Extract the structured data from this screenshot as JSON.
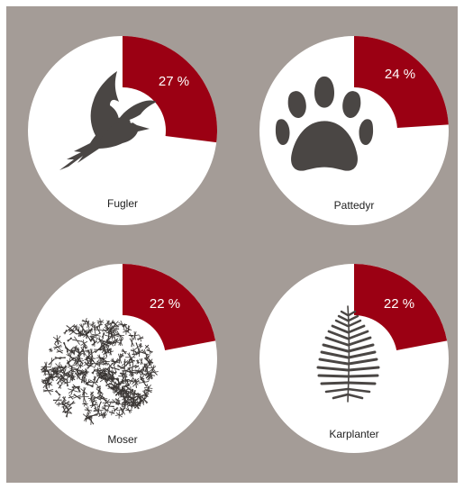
{
  "colors": {
    "background": "#a49c97",
    "circle": "#ffffff",
    "wedge": "#9b0013",
    "icon": "#4a4644"
  },
  "chart_data": [
    {
      "type": "pie",
      "category": "Fugler",
      "value": 27,
      "value_label": "27 %",
      "icon": "bird-icon"
    },
    {
      "type": "pie",
      "category": "Pattedyr",
      "value": 24,
      "value_label": "24 %",
      "icon": "paw-icon"
    },
    {
      "type": "pie",
      "category": "Moser",
      "value": 22,
      "value_label": "22 %",
      "icon": "moss-icon"
    },
    {
      "type": "pie",
      "category": "Karplanter",
      "value": 22,
      "value_label": "22 %",
      "icon": "fern-icon"
    }
  ]
}
